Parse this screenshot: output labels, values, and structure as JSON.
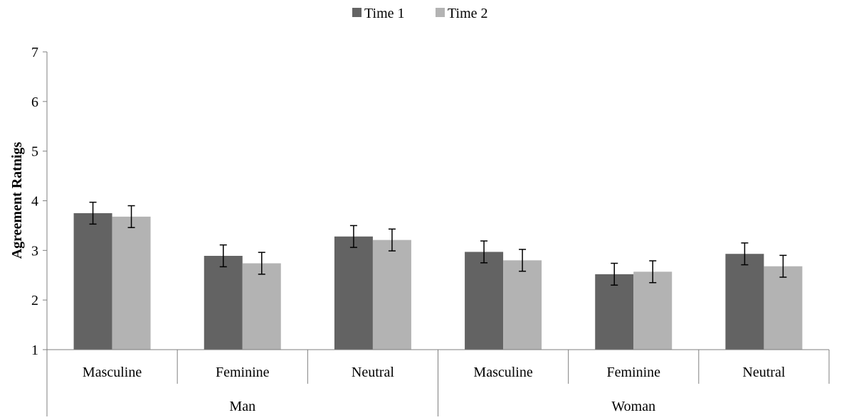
{
  "chart_data": {
    "type": "bar",
    "title": "",
    "ylabel": "Agreement Ratnigs",
    "xlabel": "",
    "ylim": [
      1,
      7
    ],
    "yticks": [
      1,
      2,
      3,
      4,
      5,
      6,
      7
    ],
    "grid": false,
    "legend_position": "top-center",
    "groups": [
      {
        "label": "Man",
        "categories": [
          "Masculine",
          "Feminine",
          "Neutral"
        ]
      },
      {
        "label": "Woman",
        "categories": [
          "Masculine",
          "Feminine",
          "Neutral"
        ]
      }
    ],
    "categories": [
      "Masculine",
      "Feminine",
      "Neutral",
      "Masculine",
      "Feminine",
      "Neutral"
    ],
    "series": [
      {
        "name": "Time 1",
        "color": "#636363",
        "values": [
          3.75,
          2.89,
          3.28,
          2.97,
          2.52,
          2.93
        ],
        "errors": [
          0.22,
          0.22,
          0.22,
          0.22,
          0.22,
          0.22
        ]
      },
      {
        "name": "Time 2",
        "color": "#b3b3b3",
        "values": [
          3.68,
          2.74,
          3.21,
          2.8,
          2.57,
          2.68
        ],
        "errors": [
          0.22,
          0.22,
          0.22,
          0.22,
          0.22,
          0.22
        ]
      }
    ]
  }
}
